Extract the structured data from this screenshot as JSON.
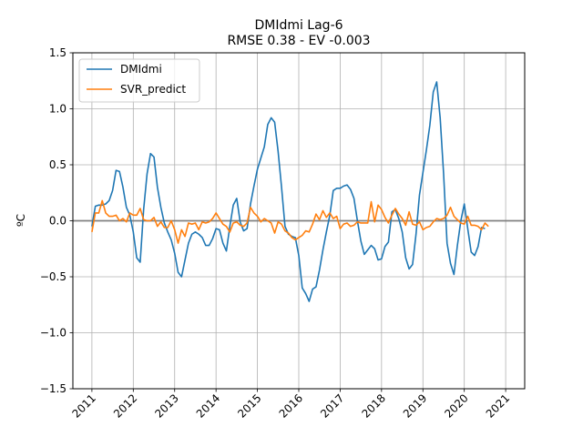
{
  "chart_data": {
    "type": "line",
    "title": "DMIdmi Lag-6",
    "subtitle": "RMSE 0.38 - EV -0.003",
    "xlabel": "",
    "ylabel": "ºC",
    "xlim": [
      2010.54,
      2021.46
    ],
    "ylim": [
      -1.5,
      1.5
    ],
    "yticks": [
      -1.5,
      -1.0,
      -0.5,
      0.0,
      0.5,
      1.0,
      1.5
    ],
    "ytick_labels": [
      "−1.5",
      "−1.0",
      "−0.5",
      "0.0",
      "0.5",
      "1.0",
      "1.5"
    ],
    "xticks": [
      2011,
      2012,
      2013,
      2014,
      2015,
      2016,
      2017,
      2018,
      2019,
      2020,
      2021
    ],
    "xtick_labels": [
      "2011",
      "2012",
      "2013",
      "2014",
      "2015",
      "2016",
      "2017",
      "2018",
      "2019",
      "2020",
      "2021"
    ],
    "grid": true,
    "zero_line": true,
    "legend_position": "top-left",
    "series": [
      {
        "name": "DMIdmi",
        "color": "#1f77b4",
        "x_start": 2011.0,
        "x_step_months": 1,
        "values": [
          -0.05,
          0.13,
          0.14,
          0.14,
          0.15,
          0.18,
          0.27,
          0.45,
          0.44,
          0.3,
          0.12,
          0.05,
          -0.1,
          -0.33,
          -0.37,
          0.1,
          0.42,
          0.6,
          0.57,
          0.3,
          0.12,
          -0.02,
          -0.1,
          -0.17,
          -0.29,
          -0.46,
          -0.5,
          -0.35,
          -0.2,
          -0.12,
          -0.1,
          -0.12,
          -0.15,
          -0.22,
          -0.22,
          -0.16,
          -0.07,
          -0.08,
          -0.2,
          -0.27,
          -0.05,
          0.14,
          0.2,
          -0.01,
          -0.09,
          -0.07,
          0.15,
          0.31,
          0.46,
          0.56,
          0.66,
          0.86,
          0.92,
          0.88,
          0.62,
          0.3,
          -0.05,
          -0.12,
          -0.14,
          -0.15,
          -0.31,
          -0.6,
          -0.65,
          -0.72,
          -0.61,
          -0.59,
          -0.44,
          -0.26,
          -0.1,
          0.05,
          0.27,
          0.29,
          0.29,
          0.31,
          0.32,
          0.28,
          0.2,
          0.0,
          -0.18,
          -0.3,
          -0.26,
          -0.22,
          -0.25,
          -0.35,
          -0.34,
          -0.23,
          -0.19,
          0.08,
          0.1,
          0.02,
          -0.1,
          -0.33,
          -0.43,
          -0.39,
          -0.12,
          0.23,
          0.43,
          0.63,
          0.85,
          1.15,
          1.24,
          0.92,
          0.42,
          -0.2,
          -0.38,
          -0.48,
          -0.22,
          0.0,
          0.15,
          -0.07,
          -0.28,
          -0.31,
          -0.23,
          -0.06,
          -0.07
        ]
      },
      {
        "name": "SVR_predict",
        "color": "#ff7f0e",
        "x_start": 2011.0,
        "x_step_months": 1,
        "values": [
          -0.1,
          0.07,
          0.07,
          0.18,
          0.07,
          0.04,
          0.04,
          0.05,
          0.0,
          0.02,
          -0.01,
          0.07,
          0.05,
          0.05,
          0.11,
          0.01,
          0.0,
          0.0,
          0.03,
          -0.05,
          -0.01,
          -0.06,
          -0.06,
          0.0,
          -0.08,
          -0.2,
          -0.08,
          -0.14,
          -0.02,
          -0.03,
          -0.02,
          -0.08,
          -0.01,
          -0.02,
          -0.01,
          0.02,
          0.07,
          0.02,
          -0.03,
          -0.05,
          -0.1,
          -0.02,
          -0.01,
          -0.04,
          -0.05,
          -0.02,
          0.12,
          0.07,
          0.04,
          -0.01,
          0.02,
          0.0,
          -0.02,
          -0.11,
          -0.01,
          -0.03,
          -0.09,
          -0.11,
          -0.15,
          -0.17,
          -0.15,
          -0.13,
          -0.09,
          -0.1,
          -0.03,
          0.06,
          0.01,
          0.09,
          0.03,
          0.07,
          0.02,
          0.04,
          -0.07,
          -0.03,
          -0.02,
          -0.05,
          -0.04,
          -0.01,
          -0.02,
          -0.02,
          -0.02,
          0.17,
          -0.01,
          0.14,
          0.1,
          0.03,
          -0.02,
          0.05,
          0.11,
          0.06,
          0.02,
          -0.04,
          0.08,
          -0.03,
          -0.04,
          -0.01,
          -0.08,
          -0.06,
          -0.05,
          -0.01,
          0.02,
          0.01,
          0.02,
          0.05,
          0.12,
          0.04,
          0.01,
          -0.02,
          -0.03,
          0.04,
          -0.04,
          -0.04,
          -0.05,
          -0.08,
          -0.02,
          -0.05
        ]
      }
    ]
  }
}
